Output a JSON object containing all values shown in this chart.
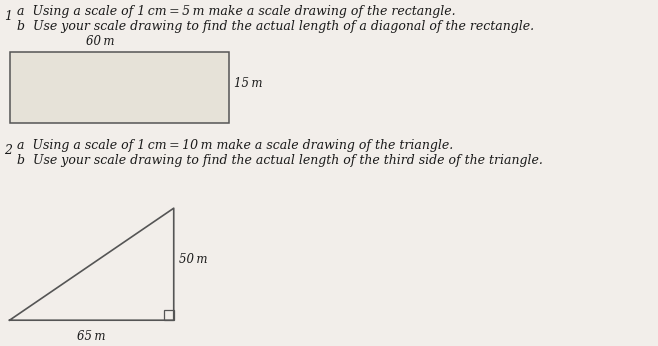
{
  "bg_color": "#f2eeea",
  "text_color": "#1a1a1a",
  "q1_number": "1",
  "q1_a_pre": "a  Using a scale of 1 cm = 5 m make a scale drawing of the rectangle.",
  "q1_b_pre": "b  Use your scale drawing to find the actual length of a diagonal of the rectangle.",
  "rect_label_top": "60 m",
  "rect_label_side": "15 m",
  "q2_number": "2",
  "q2_a_pre": "a  Using a scale of 1 cm = 10 m make a scale drawing of the triangle.",
  "q2_b_pre": "b  Use your scale drawing to find the actual length of the third side of the triangle.",
  "tri_label_side": "50 m",
  "tri_label_base": "65 m",
  "small_square_size": 0.014
}
